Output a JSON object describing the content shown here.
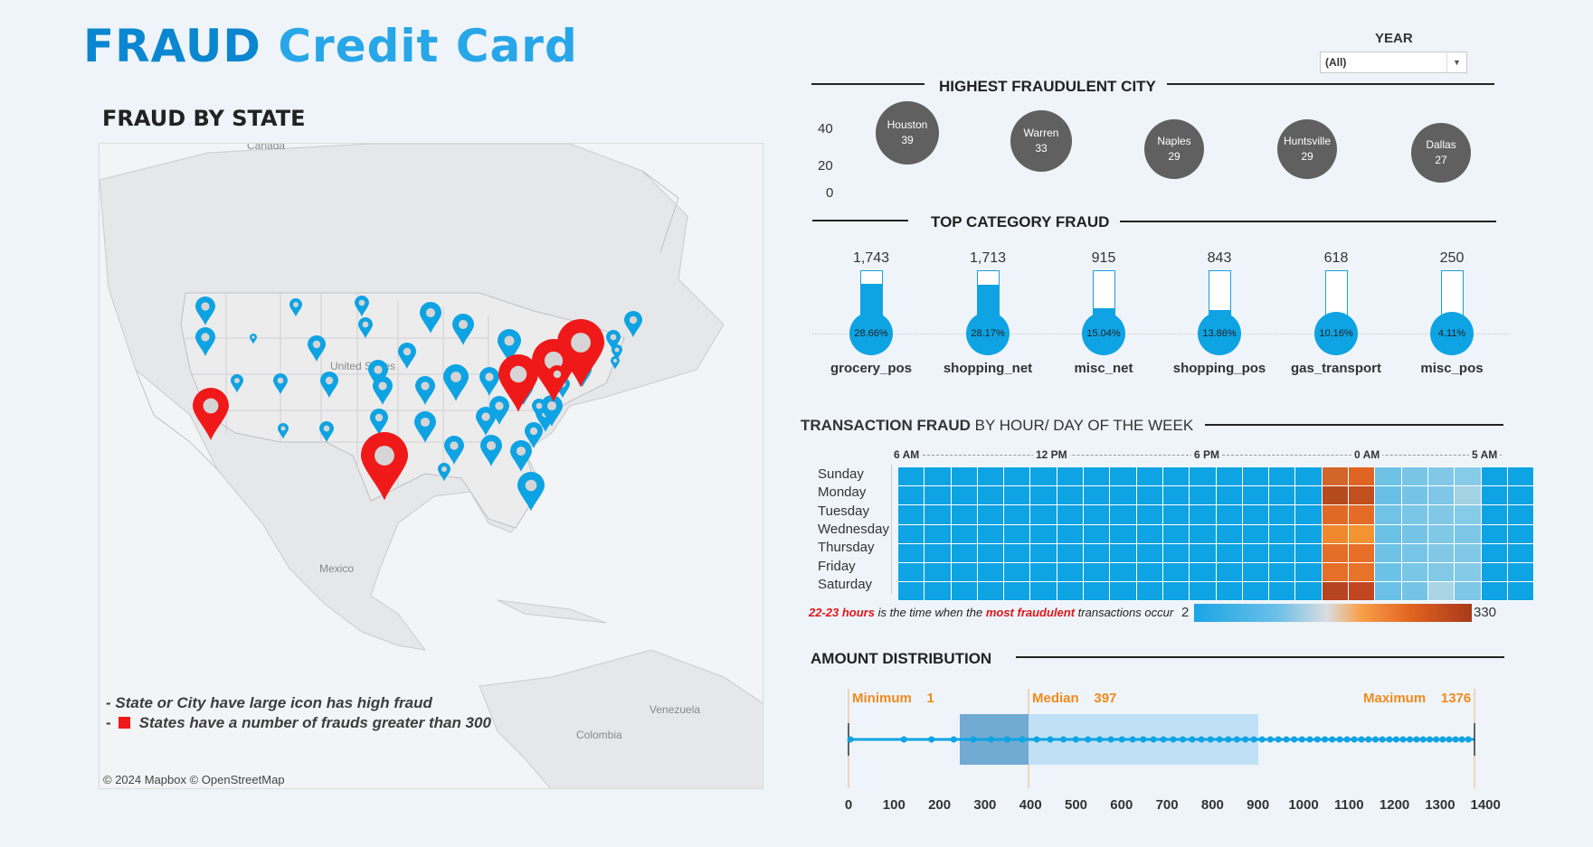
{
  "header": {
    "title_part1": "FRAUD",
    "title_part2": "Credit Card"
  },
  "year_filter": {
    "label": "YEAR",
    "selected": "(All)"
  },
  "map_section": {
    "title": "FRAUD BY STATE",
    "place_labels": [
      "Canada",
      "United States",
      "Mexico",
      "Venezuela",
      "Colombia"
    ],
    "notes": [
      "- State or City have large icon has high fraud",
      "States have a number of frauds greater than 300"
    ],
    "note_prefix": "-",
    "credit": "© 2024 Mapbox © OpenStreetMap",
    "colors": {
      "high": "#f01919",
      "normal": "#0ea3e3"
    }
  },
  "highest_city": {
    "title": "HIGHEST FRAUDULENT CITY",
    "axis_ticks": [
      "40",
      "20",
      "0"
    ],
    "cities": [
      {
        "name": "Houston",
        "value": 39
      },
      {
        "name": "Warren",
        "value": 33
      },
      {
        "name": "Naples",
        "value": 29
      },
      {
        "name": "Huntsville",
        "value": 29
      },
      {
        "name": "Dallas",
        "value": 27
      }
    ]
  },
  "top_category": {
    "title": "TOP CATEGORY FRAUD",
    "items": [
      {
        "name": "grocery_pos",
        "count": "1,743",
        "pct": "28.66%",
        "fill": 0.8
      },
      {
        "name": "shopping_net",
        "count": "1,713",
        "pct": "28.17%",
        "fill": 0.79
      },
      {
        "name": "misc_net",
        "count": "915",
        "pct": "15.04%",
        "fill": 0.42
      },
      {
        "name": "shopping_pos",
        "count": "843",
        "pct": "13.86%",
        "fill": 0.39
      },
      {
        "name": "gas_transport",
        "count": "618",
        "pct": "10.16%",
        "fill": 0.28
      },
      {
        "name": "misc_pos",
        "count": "250",
        "pct": "4.11%",
        "fill": 0.11
      }
    ]
  },
  "transaction_fraud": {
    "title_bold": "TRANSACTION FRAUD",
    "title_rest": "BY HOUR/ DAY OF THE WEEK",
    "hour_labels": [
      "6 AM",
      "12 PM",
      "6 PM",
      "0 AM",
      "5 AM"
    ],
    "days": [
      "Sunday",
      "Monday",
      "Tuesday",
      "Wednesday",
      "Thursday",
      "Friday",
      "Saturday"
    ],
    "note_red1": "22-23 hours",
    "note_mid": " is the time when the ",
    "note_red2": "most fraudulent",
    "note_end": " transactions occur",
    "legend_min": "2",
    "legend_max": "330",
    "colors": {
      "base": "#0ea3e3",
      "night": "#7ac6e6"
    }
  },
  "amount_distribution": {
    "title": "AMOUNT DISTRIBUTION",
    "min_label": "Minimum",
    "min_value": "1",
    "median_label": "Median",
    "median_value": "397",
    "max_label": "Maximum",
    "max_value": "1376",
    "x_ticks": [
      "0",
      "100",
      "200",
      "300",
      "400",
      "500",
      "600",
      "700",
      "800",
      "900",
      "1000",
      "1100",
      "1200",
      "1300",
      "1400"
    ],
    "colors": {
      "q1": "#5b9ccc",
      "q3": "#bfe0f5",
      "points": "#0ea3e3"
    }
  }
}
